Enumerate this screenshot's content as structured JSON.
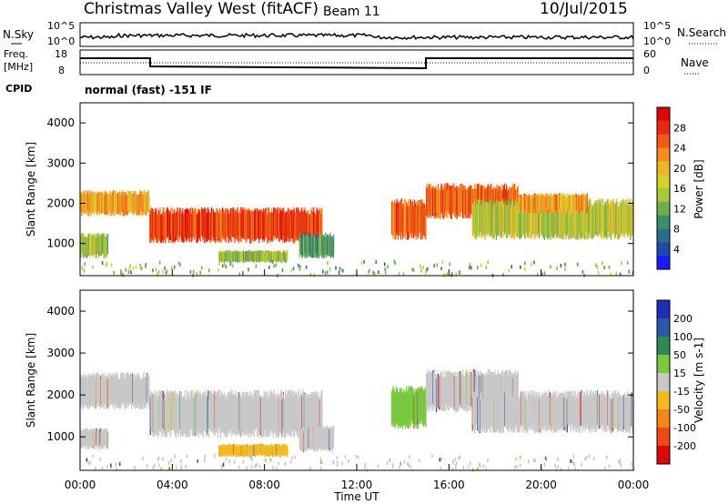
{
  "header": {
    "title": "Christmas Valley West (fitACF)",
    "beam": "Beam 11",
    "date": "10/Jul/2015"
  },
  "noise_panel": {
    "left_label": "N.Sky",
    "right_label": "N.Search",
    "left_ticks": [
      "10^5",
      "10^0"
    ],
    "right_ticks": [
      "10^5",
      "10^0"
    ]
  },
  "freq_panel": {
    "left_label_1": "Freq.",
    "left_label_2": "[MHz]",
    "right_label": "Nave",
    "left_ticks": [
      "18",
      "8"
    ],
    "right_ticks": [
      "60",
      "0"
    ],
    "cpid_label": "CPID",
    "cpid_text": "normal (fast) -151 IF"
  },
  "chart_data": [
    {
      "type": "heatmap",
      "name_role": "power",
      "ylabel": "Slant Range [km]",
      "ylim": [
        200,
        4500
      ],
      "yticks": [
        "1000",
        "2000",
        "3000",
        "4000"
      ],
      "xlim": [
        0,
        24
      ],
      "colorbar_label": "Power [dB]",
      "colorbar_ticks": [
        "4",
        "8",
        "12",
        "16",
        "20",
        "24",
        "28"
      ],
      "colorbar_range": [
        0,
        32
      ],
      "colors": [
        "#1a1aff",
        "#1f4aa8",
        "#2b6d8a",
        "#3f8e6a",
        "#6fb04e",
        "#a6c83c",
        "#d8d030",
        "#f0b428",
        "#f58a1e",
        "#f15a18",
        "#e62a12",
        "#dd0808"
      ],
      "bands": [
        {
          "t0": 0.0,
          "t1": 3.0,
          "r0": 1750,
          "r1": 2250,
          "dB": 22
        },
        {
          "t0": 0.0,
          "t1": 1.2,
          "r0": 700,
          "r1": 1200,
          "dB": 14
        },
        {
          "t0": 3.0,
          "t1": 10.5,
          "r0": 1100,
          "r1": 1800,
          "dB": 28
        },
        {
          "t0": 6.0,
          "t1": 9.0,
          "r0": 550,
          "r1": 800,
          "dB": 14
        },
        {
          "t0": 9.5,
          "t1": 11.0,
          "r0": 700,
          "r1": 1200,
          "dB": 10
        },
        {
          "t0": 13.5,
          "t1": 15.0,
          "r0": 1200,
          "r1": 2000,
          "dB": 26
        },
        {
          "t0": 15.0,
          "t1": 19.0,
          "r0": 1700,
          "r1": 2400,
          "dB": 26
        },
        {
          "t0": 17.0,
          "t1": 24.0,
          "r0": 1200,
          "r1": 2000,
          "dB": 16
        },
        {
          "t0": 19.0,
          "t1": 22.0,
          "r0": 1800,
          "r1": 2200,
          "dB": 22
        }
      ]
    },
    {
      "type": "heatmap",
      "name_role": "velocity",
      "ylabel": "Slant Range [km]",
      "ylim": [
        200,
        4500
      ],
      "yticks": [
        "1000",
        "2000",
        "3000",
        "4000"
      ],
      "xlim": [
        0,
        24
      ],
      "xticks": [
        "00:00",
        "04:00",
        "08:00",
        "12:00",
        "16:00",
        "20:00",
        "00:00"
      ],
      "xlabel": "Time UT",
      "colorbar_label": "Velocity [m s-1]",
      "colorbar_ticks": [
        "200",
        "100",
        "50",
        "15",
        "-15",
        "-50",
        "-100",
        "-200"
      ],
      "colors": [
        "#1f2fb4",
        "#2a5aa6",
        "#2f8a52",
        "#78c840",
        "#c8c8c8",
        "#f2b826",
        "#f5861e",
        "#ee4a16",
        "#dd0808"
      ],
      "bands": [
        {
          "t0": 0.0,
          "t1": 3.0,
          "r0": 1750,
          "r1": 2450,
          "v": 0
        },
        {
          "t0": 0.0,
          "t1": 1.2,
          "r0": 750,
          "r1": 1150,
          "v": 0
        },
        {
          "t0": 3.0,
          "t1": 10.5,
          "r0": 1100,
          "r1": 2000,
          "v": 0
        },
        {
          "t0": 6.0,
          "t1": 9.0,
          "r0": 550,
          "r1": 800,
          "v": -40
        },
        {
          "t0": 9.5,
          "t1": 11.0,
          "r0": 700,
          "r1": 1200,
          "v": 0
        },
        {
          "t0": 13.5,
          "t1": 15.0,
          "r0": 1300,
          "r1": 2100,
          "v": 30
        },
        {
          "t0": 15.0,
          "t1": 19.0,
          "r0": 1700,
          "r1": 2500,
          "v": 0
        },
        {
          "t0": 17.0,
          "t1": 24.0,
          "r0": 1200,
          "r1": 2000,
          "v": 0
        }
      ]
    }
  ]
}
